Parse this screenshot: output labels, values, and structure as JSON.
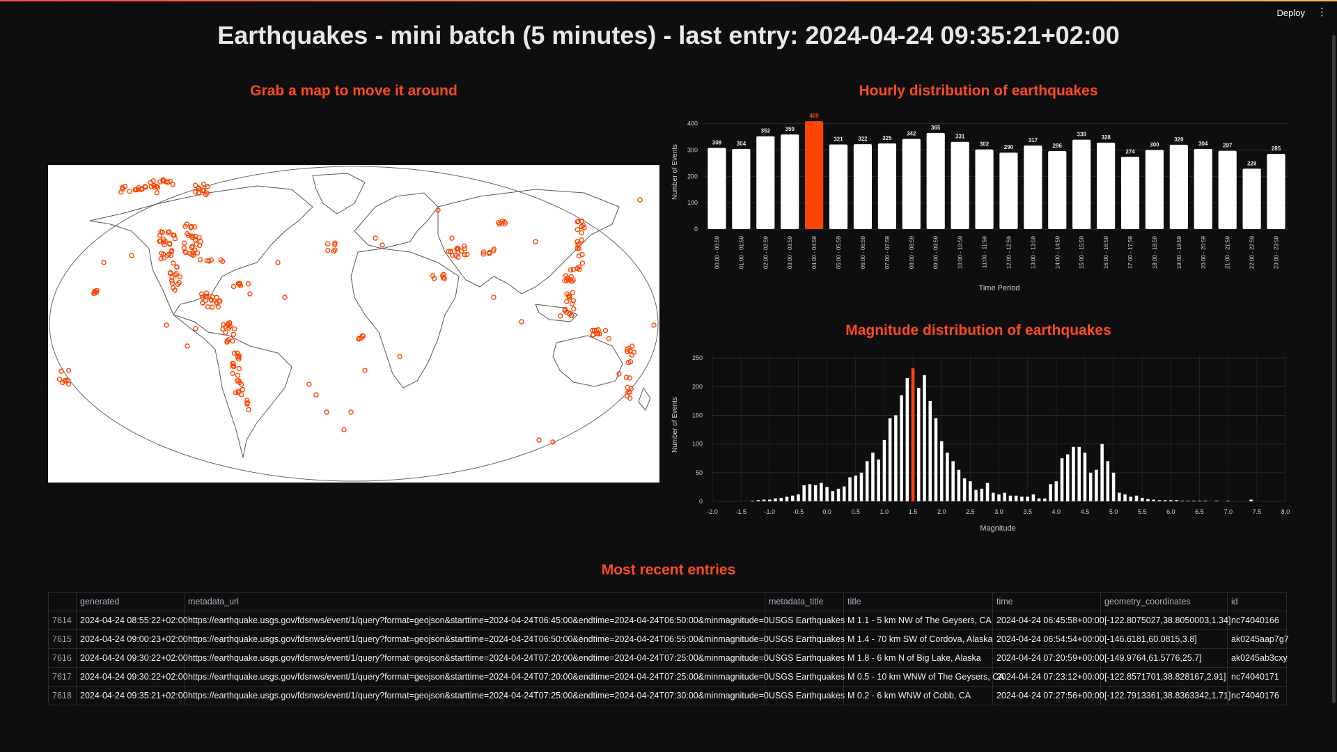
{
  "app": {
    "deploy_label": "Deploy",
    "menu_icon": "kebab-icon"
  },
  "title": "Earthquakes - mini batch (5 minutes) - last entry: 2024-04-24 09:35:21+02:00",
  "map_section": {
    "title": "Grab a map to move it around",
    "marker_color": "#ff4500"
  },
  "hourly": {
    "title": "Hourly distribution of earthquakes",
    "chart_data": {
      "type": "bar",
      "categories": [
        "00:00 - 00:59",
        "01:00 - 01:59",
        "02:00 - 02:59",
        "03:00 - 03:59",
        "04:00 - 04:59",
        "05:00 - 05:59",
        "06:00 - 06:59",
        "07:00 - 07:59",
        "08:00 - 08:59",
        "09:00 - 09:59",
        "10:00 - 10:59",
        "11:00 - 11:59",
        "12:00 - 12:59",
        "13:00 - 13:59",
        "14:00 - 14:59",
        "15:00 - 15:59",
        "16:00 - 16:59",
        "17:00 - 17:59",
        "18:00 - 18:59",
        "19:00 - 19:59",
        "20:00 - 20:59",
        "21:00 - 21:59",
        "22:00 - 22:59",
        "23:00 - 23:59"
      ],
      "values": [
        308,
        304,
        352,
        359,
        409,
        321,
        322,
        325,
        342,
        365,
        331,
        302,
        290,
        317,
        296,
        339,
        328,
        274,
        300,
        320,
        304,
        297,
        229,
        285
      ],
      "highlight_index": 4,
      "xlabel": "Time Period",
      "ylabel": "Number of Events",
      "ylim": [
        0,
        420
      ],
      "yticks": [
        0,
        100,
        200,
        300,
        400
      ],
      "bar_color": "#ffffff",
      "highlight_color": "#ff4500"
    }
  },
  "magnitude": {
    "title": "Magnitude distribution of earthquakes",
    "chart_data": {
      "type": "bar",
      "x": [
        -1.3,
        -1.2,
        -1.1,
        -1.0,
        -0.9,
        -0.8,
        -0.7,
        -0.6,
        -0.5,
        -0.4,
        -0.3,
        -0.2,
        -0.1,
        0.0,
        0.1,
        0.2,
        0.3,
        0.4,
        0.5,
        0.6,
        0.7,
        0.8,
        0.9,
        1.0,
        1.1,
        1.2,
        1.3,
        1.4,
        1.5,
        1.6,
        1.7,
        1.8,
        1.9,
        2.0,
        2.1,
        2.2,
        2.3,
        2.4,
        2.5,
        2.6,
        2.7,
        2.8,
        2.9,
        3.0,
        3.1,
        3.2,
        3.3,
        3.4,
        3.5,
        3.6,
        3.7,
        3.8,
        3.9,
        4.0,
        4.1,
        4.2,
        4.3,
        4.4,
        4.5,
        4.6,
        4.7,
        4.8,
        4.9,
        5.0,
        5.1,
        5.2,
        5.3,
        5.4,
        5.5,
        5.6,
        5.7,
        5.8,
        5.9,
        6.0,
        6.1,
        6.2,
        6.3,
        6.4,
        6.5,
        6.6,
        6.8,
        7.0,
        7.4
      ],
      "values": [
        1,
        2,
        3,
        3,
        5,
        6,
        8,
        10,
        12,
        28,
        30,
        28,
        32,
        25,
        18,
        22,
        26,
        42,
        45,
        50,
        70,
        85,
        73,
        107,
        145,
        150,
        185,
        215,
        232,
        198,
        220,
        175,
        145,
        105,
        85,
        70,
        55,
        40,
        35,
        20,
        22,
        32,
        15,
        12,
        15,
        10,
        10,
        8,
        8,
        12,
        5,
        5,
        30,
        35,
        75,
        82,
        95,
        95,
        85,
        50,
        55,
        100,
        70,
        50,
        15,
        12,
        8,
        10,
        6,
        4,
        3,
        2,
        2,
        2,
        2,
        1,
        1,
        1,
        1,
        1,
        1,
        1,
        3
      ],
      "highlight_index": 28,
      "xlabel": "Magnitude",
      "ylabel": "Number of Events",
      "xlim": [
        -2.0,
        8.0
      ],
      "xticks": [
        -2.0,
        -1.5,
        -1.0,
        -0.5,
        0.0,
        0.5,
        1.0,
        1.5,
        2.0,
        2.5,
        3.0,
        3.5,
        4.0,
        4.5,
        5.0,
        5.5,
        6.0,
        6.5,
        7.0,
        7.5,
        8.0
      ],
      "ylim": [
        0,
        255
      ],
      "yticks": [
        0,
        50,
        100,
        150,
        200,
        250
      ],
      "bar_color": "#ffffff",
      "highlight_color": "#ff4500"
    }
  },
  "table": {
    "title": "Most recent entries",
    "columns": [
      "",
      "generated",
      "metadata_url",
      "metadata_title",
      "title",
      "time",
      "geometry_coordinates",
      "id"
    ],
    "rows": [
      [
        "7614",
        "2024-04-24 08:55:22+02:00",
        "https://earthquake.usgs.gov/fdsnws/event/1/query?format=geojson&starttime=2024-04-24T06:45:00&endtime=2024-04-24T06:50:00&minmagnitude=0",
        "USGS Earthquakes",
        "M 1.1 - 5 km NW of The Geysers, CA",
        "2024-04-24 06:45:58+00:00",
        "[-122.8075027,38.8050003,1.34]",
        "nc74040166"
      ],
      [
        "7615",
        "2024-04-24 09:00:23+02:00",
        "https://earthquake.usgs.gov/fdsnws/event/1/query?format=geojson&starttime=2024-04-24T06:50:00&endtime=2024-04-24T06:55:00&minmagnitude=0",
        "USGS Earthquakes",
        "M 1.4 - 70 km SW of Cordova, Alaska",
        "2024-04-24 06:54:54+00:00",
        "[-146.6181,60.0815,3.8]",
        "ak0245aap7g7"
      ],
      [
        "7616",
        "2024-04-24 09:30:22+02:00",
        "https://earthquake.usgs.gov/fdsnws/event/1/query?format=geojson&starttime=2024-04-24T07:20:00&endtime=2024-04-24T07:25:00&minmagnitude=0",
        "USGS Earthquakes",
        "M 1.8 - 6 km N of Big Lake, Alaska",
        "2024-04-24 07:20:59+00:00",
        "[-149.9764,61.5776,25.7]",
        "ak0245ab3cxy"
      ],
      [
        "7617",
        "2024-04-24 09:30:22+02:00",
        "https://earthquake.usgs.gov/fdsnws/event/1/query?format=geojson&starttime=2024-04-24T07:20:00&endtime=2024-04-24T07:25:00&minmagnitude=0",
        "USGS Earthquakes",
        "M 0.5 - 10 km WNW of The Geysers, CA",
        "2024-04-24 07:23:12+00:00",
        "[-122.8571701,38.828167,2.91]",
        "nc74040171"
      ],
      [
        "7618",
        "2024-04-24 09:35:21+02:00",
        "https://earthquake.usgs.gov/fdsnws/event/1/query?format=geojson&starttime=2024-04-24T07:25:00&endtime=2024-04-24T07:30:00&minmagnitude=0",
        "USGS Earthquakes",
        "M 0.2 - 6 km WNW of Cobb, CA",
        "2024-04-24 07:27:56+00:00",
        "[-122.7913361,38.8363342,1.71]",
        "nc74040176"
      ]
    ]
  }
}
